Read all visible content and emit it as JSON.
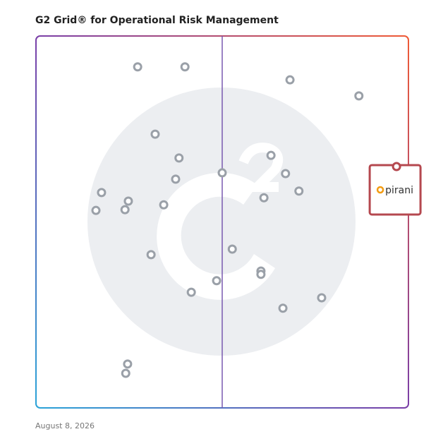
{
  "chart_data": {
    "type": "scatter",
    "title": "G2 Grid® for Operational Risk Management",
    "date": "August 8, 2026",
    "xlim": [
      0,
      100
    ],
    "ylim": [
      0,
      100
    ],
    "series": [
      {
        "color": "#9aa0a8",
        "x": [
          27.3,
          40.0,
          68.2,
          86.7,
          32.0,
          38.4,
          63.1,
          37.5,
          50.0,
          67.0,
          70.6,
          61.2,
          17.6,
          24.8,
          16.1,
          23.9,
          34.3,
          30.9,
          52.7,
          60.4,
          60.4,
          48.5,
          41.7,
          76.7,
          66.3,
          24.6,
          24.1
        ],
        "values": [
          91.7,
          91.7,
          88.2,
          83.9,
          73.6,
          67.2,
          67.9,
          61.5,
          63.2,
          63.0,
          58.3,
          56.5,
          57.9,
          55.6,
          53.1,
          53.3,
          54.6,
          41.2,
          42.7,
          36.8,
          35.9,
          34.2,
          31.1,
          29.6,
          26.8,
          11.8,
          9.3
        ]
      },
      {
        "name": "pirani",
        "color": "#b5484f",
        "x": [
          96.8
        ],
        "values": [
          64.9
        ]
      }
    ]
  }
}
